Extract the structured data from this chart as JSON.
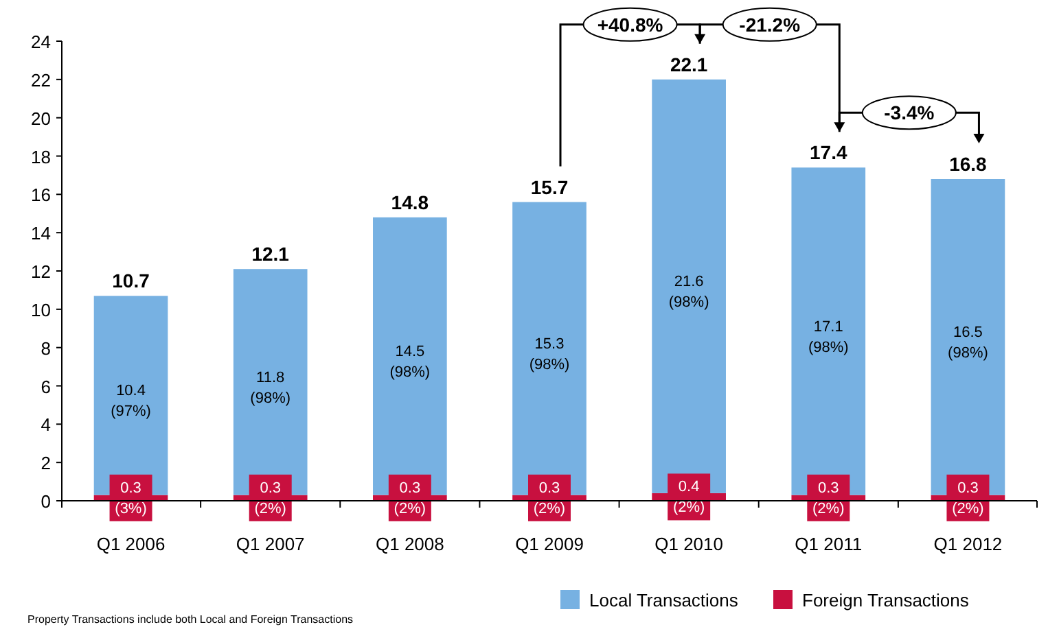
{
  "chart_data": {
    "type": "bar",
    "stacked": true,
    "categories": [
      "Q1 2006",
      "Q1 2007",
      "Q1 2008",
      "Q1 2009",
      "Q1 2010",
      "Q1 2011",
      "Q1 2012"
    ],
    "series": [
      {
        "name": "Foreign Transactions",
        "color": "#c8103f",
        "values": [
          0.3,
          0.3,
          0.3,
          0.3,
          0.4,
          0.3,
          0.3
        ],
        "value_labels": [
          "0.3 (3%)",
          "0.3 (2%)",
          "0.3 (2%)",
          "0.3 (2%)",
          "0.4 (2%)",
          "0.3 (2%)",
          "0.3 (2%)"
        ]
      },
      {
        "name": "Local Transactions",
        "color": "#77b1e2",
        "values": [
          10.4,
          11.8,
          14.5,
          15.3,
          21.6,
          17.1,
          16.5
        ],
        "value_labels": [
          "10.4 (97%)",
          "11.8 (98%)",
          "14.5 (98%)",
          "15.3 (98%)",
          "21.6 (98%)",
          "17.1 (98%)",
          "16.5 (98%)"
        ]
      }
    ],
    "totals": [
      "10.7",
      "12.1",
      "14.8",
      "15.7",
      "22.1",
      "17.4",
      "16.8"
    ],
    "ylim": [
      0,
      24
    ],
    "yticks": [
      0,
      2,
      4,
      6,
      8,
      10,
      12,
      14,
      16,
      18,
      20,
      22,
      24
    ],
    "grid": false,
    "legend": "bottom right",
    "annotations": [
      "+40.8%",
      "-21.2%",
      "-3.4%",
      "Property Transactions include both Local and Foreign Transactions"
    ]
  }
}
